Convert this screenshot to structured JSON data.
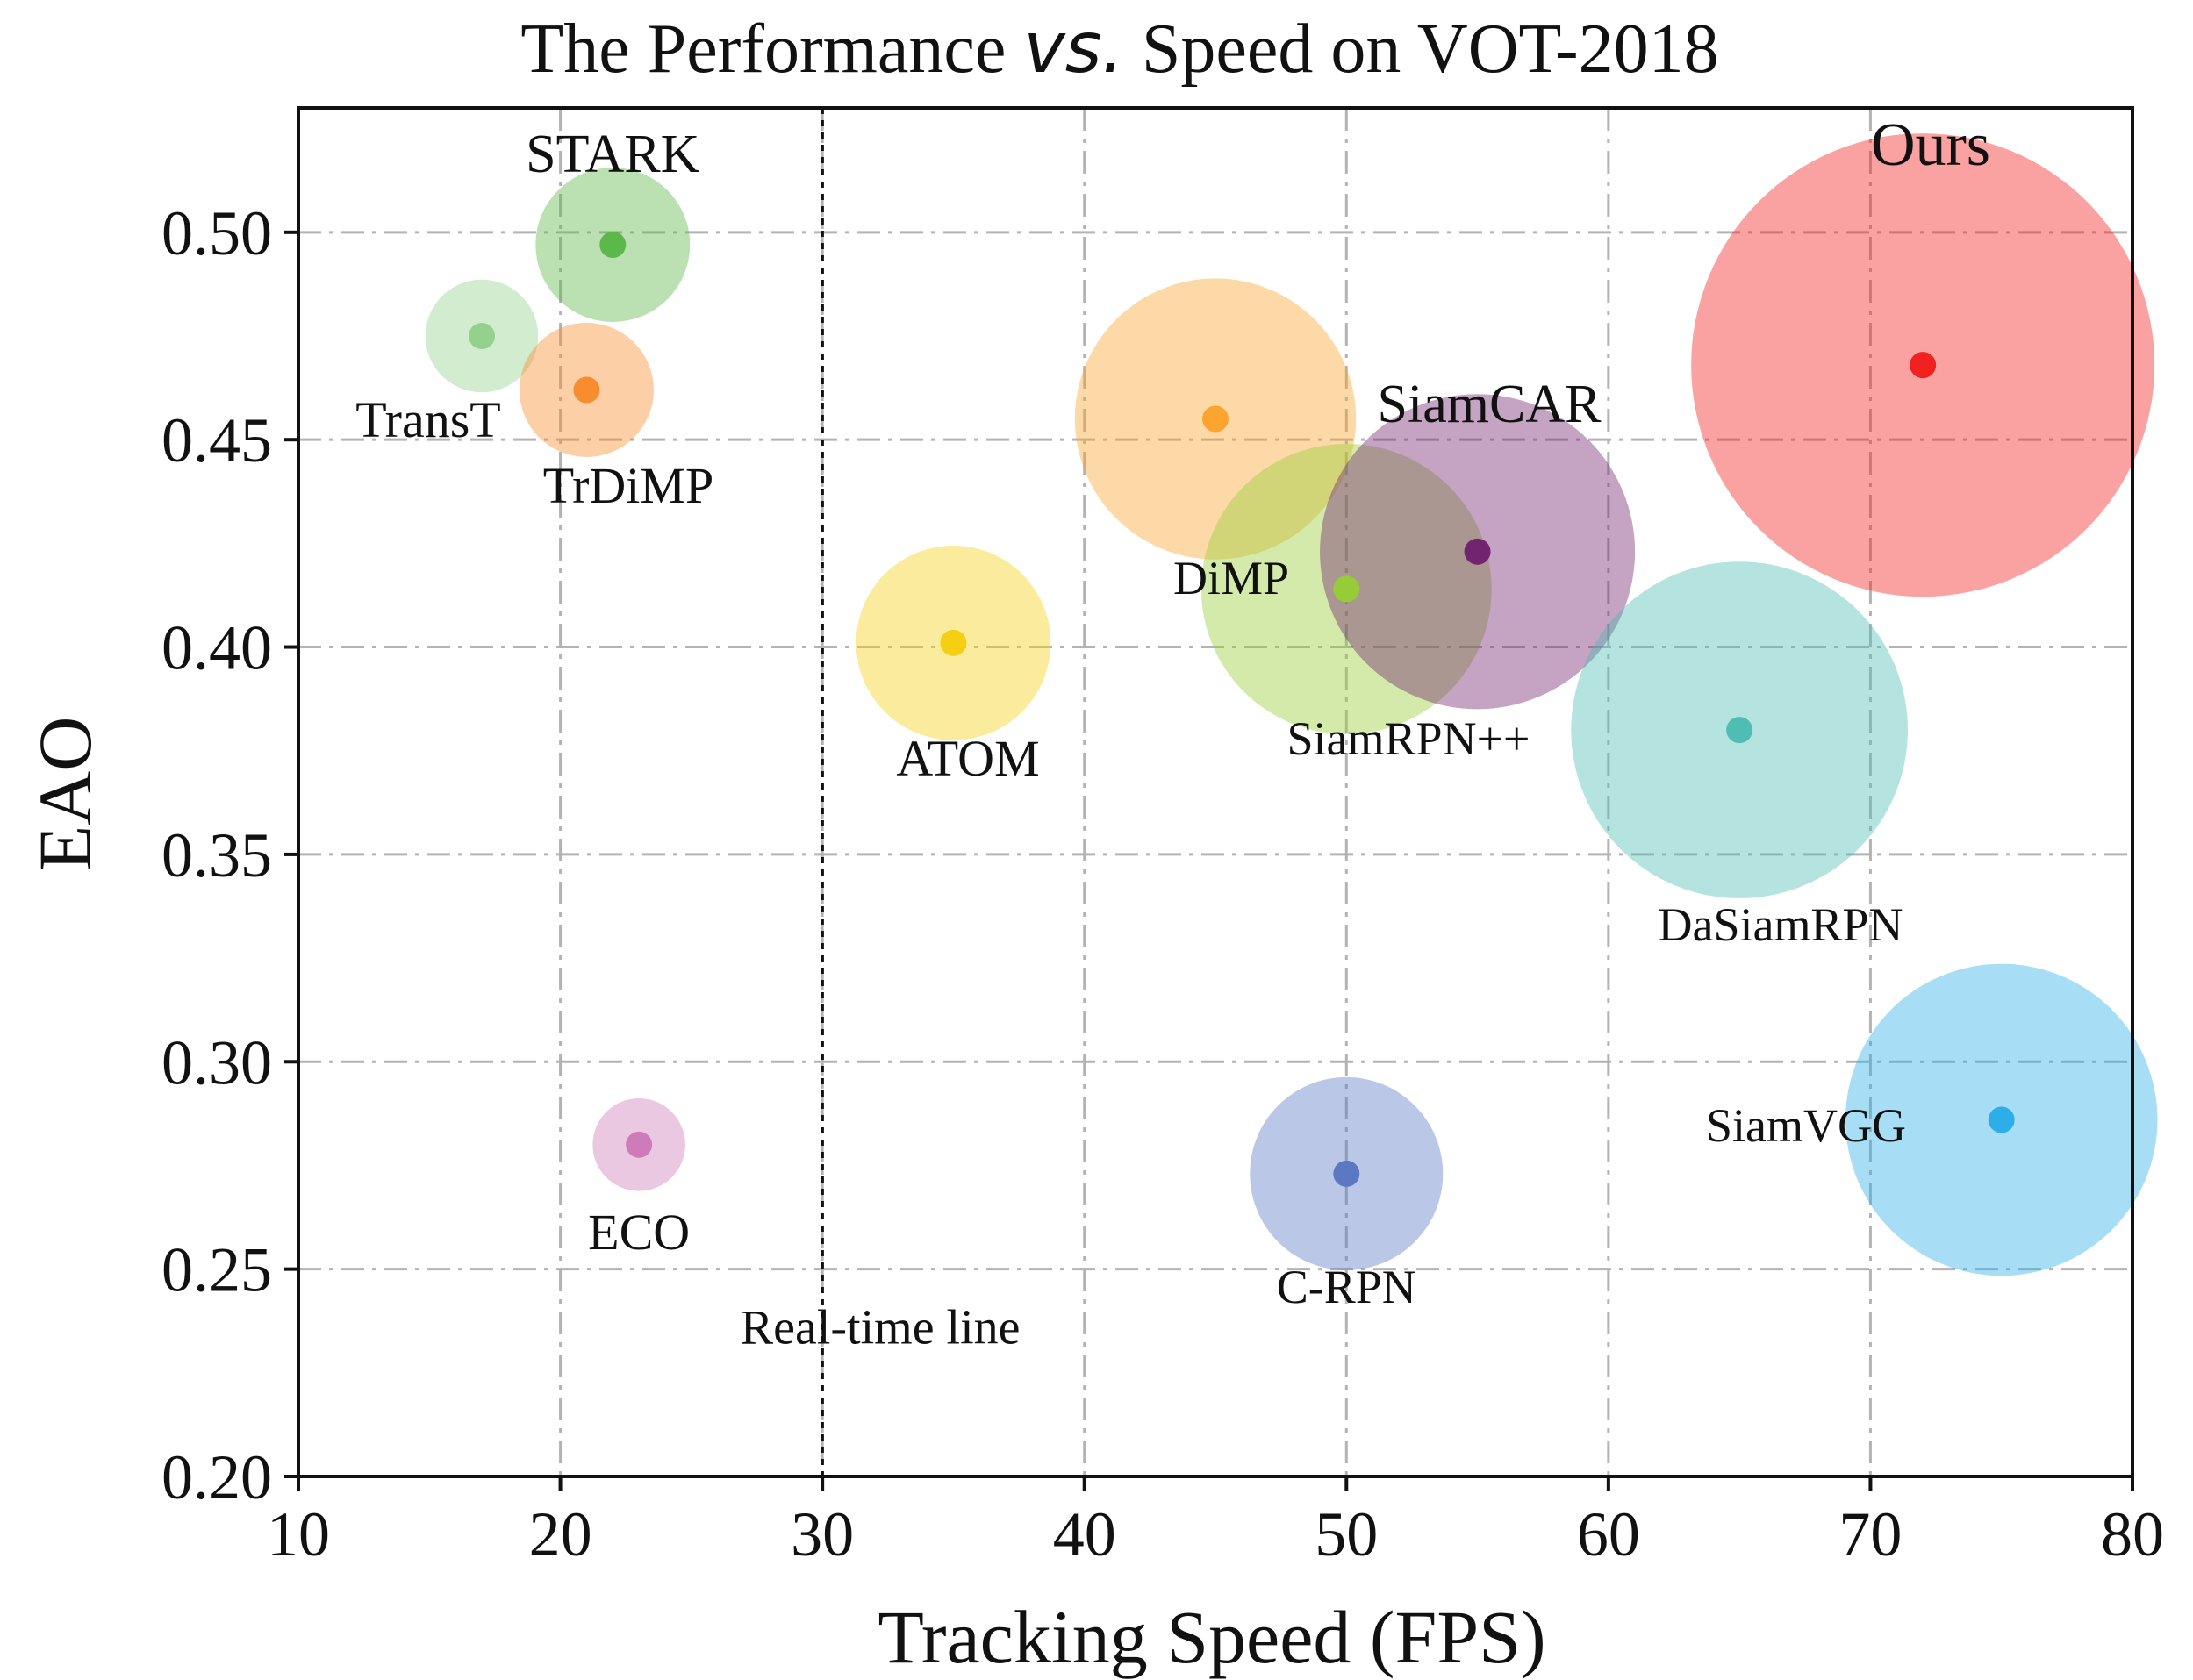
{
  "chart_data": {
    "type": "scatter",
    "title_prefix": "The Performance ",
    "title_italic": "vs.",
    "title_suffix": " Speed on VOT-2018",
    "xlabel": "Tracking Speed (FPS)",
    "ylabel": "EAO",
    "xlim": [
      10,
      80
    ],
    "ylim": [
      0.2,
      0.53
    ],
    "xticks": [
      "10",
      "20",
      "30",
      "40",
      "50",
      "60",
      "70",
      "80"
    ],
    "xtick_values": [
      10,
      20,
      30,
      40,
      50,
      60,
      70,
      80
    ],
    "yticks": [
      "0.20",
      "0.25",
      "0.30",
      "0.35",
      "0.40",
      "0.45",
      "0.50"
    ],
    "ytick_values": [
      0.2,
      0.25,
      0.3,
      0.35,
      0.4,
      0.45,
      0.5
    ],
    "grid": true,
    "realtime_line": {
      "x": 30,
      "label": "Real-time line"
    },
    "trackers": [
      {
        "name": "STARK",
        "fps": 22,
        "eao": 0.497,
        "bubble_size": 1.0,
        "color": "#5cb84a",
        "label_pos": "above"
      },
      {
        "name": "TransT",
        "fps": 17,
        "eao": 0.475,
        "bubble_size": 0.73,
        "color": "#93d18c",
        "label_pos": "below-left"
      },
      {
        "name": "TrDiMP",
        "fps": 21,
        "eao": 0.462,
        "bubble_size": 0.87,
        "color": "#f98c2e",
        "label_pos": "below-right"
      },
      {
        "name": "ECO",
        "fps": 23,
        "eao": 0.28,
        "bubble_size": 0.6,
        "color": "#cf7bb9",
        "label_pos": "below"
      },
      {
        "name": "ATOM",
        "fps": 35,
        "eao": 0.401,
        "bubble_size": 1.26,
        "color": "#f5cf12",
        "label_pos": "below"
      },
      {
        "name": "DiMP",
        "fps": 45,
        "eao": 0.455,
        "bubble_size": 1.82,
        "color": "#fca430",
        "label_pos": "below"
      },
      {
        "name": "SiamRPN++",
        "fps": 50,
        "eao": 0.414,
        "bubble_size": 1.88,
        "color": "#96cc37",
        "label_pos": "below-right"
      },
      {
        "name": "SiamCAR",
        "fps": 55,
        "eao": 0.423,
        "bubble_size": 2.04,
        "color": "#72246f",
        "label_pos": "above"
      },
      {
        "name": "C-RPN",
        "fps": 50,
        "eao": 0.273,
        "bubble_size": 1.25,
        "color": "#5b79c3",
        "label_pos": "below"
      },
      {
        "name": "DaSiamRPN",
        "fps": 65,
        "eao": 0.38,
        "bubble_size": 2.18,
        "color": "#4fbdb4",
        "label_pos": "below"
      },
      {
        "name": "SiamVGG",
        "fps": 75,
        "eao": 0.286,
        "bubble_size": 2.02,
        "color": "#2eaee8",
        "label_pos": "left"
      },
      {
        "name": "Ours",
        "fps": 72,
        "eao": 0.468,
        "bubble_size": 3.0,
        "color": "#f0211f",
        "label_pos": "above"
      }
    ]
  }
}
